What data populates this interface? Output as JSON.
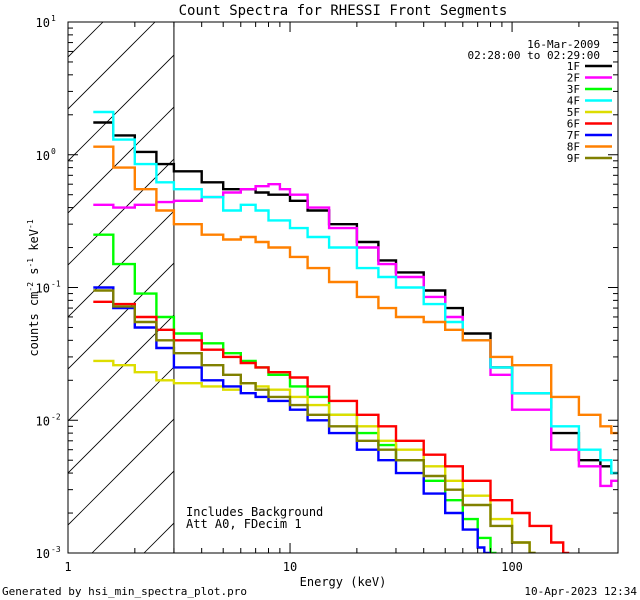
{
  "chart_data": {
    "type": "line",
    "title": "Count Spectra for RHESSI Front Segments",
    "xlabel": "Energy (keV)",
    "ylabel_parts": [
      "counts cm",
      "-2",
      " s",
      "-1",
      " keV",
      "-1"
    ],
    "xscale": "log",
    "yscale": "log",
    "xlim": [
      1,
      300
    ],
    "ylim": [
      0.001,
      10
    ],
    "x_ticks": [
      {
        "value": 1,
        "label": "1"
      },
      {
        "value": 10,
        "label": "10"
      },
      {
        "value": 100,
        "label": "100"
      }
    ],
    "y_ticks": [
      {
        "value": 0.001,
        "base": "10",
        "exp": "-3"
      },
      {
        "value": 0.01,
        "base": "10",
        "exp": "-2"
      },
      {
        "value": 0.1,
        "base": "10",
        "exp": "-1"
      },
      {
        "value": 1,
        "base": "10",
        "exp": "0"
      },
      {
        "value": 10,
        "base": "10",
        "exp": "1"
      }
    ],
    "date": "16-Mar-2009",
    "time_range": "02:28:00 to 02:29:00",
    "shaded_region": {
      "x_from": 1,
      "x_to": 3
    },
    "annotations": [
      "Includes Background",
      "Att A0, FDecim 1"
    ],
    "series": [
      {
        "name": "1F",
        "color": "#000000",
        "points": [
          [
            1.3,
            1.75
          ],
          [
            1.6,
            1.4
          ],
          [
            2,
            1.05
          ],
          [
            2.5,
            0.85
          ],
          [
            3,
            0.75
          ],
          [
            4,
            0.62
          ],
          [
            5,
            0.55
          ],
          [
            6,
            0.55
          ],
          [
            7,
            0.52
          ],
          [
            8,
            0.5
          ],
          [
            10,
            0.45
          ],
          [
            12,
            0.38
          ],
          [
            15,
            0.3
          ],
          [
            20,
            0.22
          ],
          [
            25,
            0.16
          ],
          [
            30,
            0.13
          ],
          [
            40,
            0.095
          ],
          [
            50,
            0.07
          ],
          [
            60,
            0.045
          ],
          [
            80,
            0.025
          ],
          [
            100,
            0.016
          ],
          [
            150,
            0.008
          ],
          [
            200,
            0.005
          ],
          [
            250,
            0.0045
          ],
          [
            280,
            0.004
          ]
        ]
      },
      {
        "name": "2F",
        "color": "#ff00ff",
        "points": [
          [
            1.3,
            0.42
          ],
          [
            1.6,
            0.4
          ],
          [
            2,
            0.42
          ],
          [
            2.5,
            0.44
          ],
          [
            3,
            0.45
          ],
          [
            4,
            0.48
          ],
          [
            5,
            0.52
          ],
          [
            6,
            0.55
          ],
          [
            7,
            0.58
          ],
          [
            8,
            0.6
          ],
          [
            9,
            0.55
          ],
          [
            10,
            0.5
          ],
          [
            12,
            0.4
          ],
          [
            15,
            0.28
          ],
          [
            20,
            0.2
          ],
          [
            25,
            0.15
          ],
          [
            30,
            0.12
          ],
          [
            40,
            0.085
          ],
          [
            50,
            0.06
          ],
          [
            60,
            0.04
          ],
          [
            80,
            0.022
          ],
          [
            100,
            0.012
          ],
          [
            150,
            0.006
          ],
          [
            200,
            0.0045
          ],
          [
            250,
            0.0032
          ],
          [
            280,
            0.0035
          ]
        ]
      },
      {
        "name": "3F",
        "color": "#00ff00",
        "points": [
          [
            1.3,
            0.25
          ],
          [
            1.6,
            0.15
          ],
          [
            2,
            0.09
          ],
          [
            2.5,
            0.06
          ],
          [
            3,
            0.045
          ],
          [
            4,
            0.038
          ],
          [
            5,
            0.032
          ],
          [
            6,
            0.028
          ],
          [
            7,
            0.025
          ],
          [
            8,
            0.022
          ],
          [
            10,
            0.018
          ],
          [
            12,
            0.015
          ],
          [
            15,
            0.011
          ],
          [
            20,
            0.008
          ],
          [
            25,
            0.0065
          ],
          [
            30,
            0.005
          ],
          [
            40,
            0.0035
          ],
          [
            50,
            0.0025
          ],
          [
            60,
            0.0018
          ],
          [
            70,
            0.0013
          ],
          [
            80,
            0.001
          ]
        ]
      },
      {
        "name": "4F",
        "color": "#00ffff",
        "points": [
          [
            1.3,
            2.1
          ],
          [
            1.6,
            1.3
          ],
          [
            2,
            0.85
          ],
          [
            2.5,
            0.62
          ],
          [
            3,
            0.55
          ],
          [
            4,
            0.48
          ],
          [
            5,
            0.38
          ],
          [
            6,
            0.42
          ],
          [
            7,
            0.38
          ],
          [
            8,
            0.32
          ],
          [
            10,
            0.28
          ],
          [
            12,
            0.24
          ],
          [
            15,
            0.2
          ],
          [
            20,
            0.14
          ],
          [
            25,
            0.12
          ],
          [
            30,
            0.1
          ],
          [
            40,
            0.075
          ],
          [
            50,
            0.055
          ],
          [
            60,
            0.04
          ],
          [
            80,
            0.025
          ],
          [
            100,
            0.016
          ],
          [
            150,
            0.009
          ],
          [
            200,
            0.006
          ],
          [
            250,
            0.005
          ],
          [
            280,
            0.004
          ]
        ]
      },
      {
        "name": "5F",
        "color": "#dddd00",
        "points": [
          [
            1.3,
            0.028
          ],
          [
            1.6,
            0.026
          ],
          [
            2,
            0.023
          ],
          [
            2.5,
            0.02
          ],
          [
            3,
            0.019
          ],
          [
            4,
            0.018
          ],
          [
            5,
            0.017
          ],
          [
            6,
            0.019
          ],
          [
            7,
            0.018
          ],
          [
            8,
            0.017
          ],
          [
            10,
            0.015
          ],
          [
            12,
            0.013
          ],
          [
            15,
            0.011
          ],
          [
            20,
            0.009
          ],
          [
            25,
            0.007
          ],
          [
            30,
            0.006
          ],
          [
            40,
            0.0045
          ],
          [
            50,
            0.0035
          ],
          [
            60,
            0.0027
          ],
          [
            80,
            0.0018
          ],
          [
            100,
            0.0012
          ],
          [
            120,
            0.001
          ]
        ]
      },
      {
        "name": "6F",
        "color": "#ff0000",
        "points": [
          [
            1.3,
            0.078
          ],
          [
            1.6,
            0.075
          ],
          [
            2,
            0.06
          ],
          [
            2.5,
            0.048
          ],
          [
            3,
            0.04
          ],
          [
            4,
            0.034
          ],
          [
            5,
            0.03
          ],
          [
            6,
            0.027
          ],
          [
            7,
            0.025
          ],
          [
            8,
            0.023
          ],
          [
            10,
            0.021
          ],
          [
            12,
            0.018
          ],
          [
            15,
            0.014
          ],
          [
            20,
            0.011
          ],
          [
            25,
            0.009
          ],
          [
            30,
            0.007
          ],
          [
            40,
            0.0055
          ],
          [
            50,
            0.0045
          ],
          [
            60,
            0.0035
          ],
          [
            80,
            0.0025
          ],
          [
            100,
            0.002
          ],
          [
            120,
            0.0016
          ],
          [
            150,
            0.0012
          ],
          [
            170,
            0.001
          ]
        ]
      },
      {
        "name": "7F",
        "color": "#0000ff",
        "points": [
          [
            1.3,
            0.1
          ],
          [
            1.6,
            0.07
          ],
          [
            2,
            0.05
          ],
          [
            2.5,
            0.035
          ],
          [
            3,
            0.025
          ],
          [
            4,
            0.02
          ],
          [
            5,
            0.018
          ],
          [
            6,
            0.016
          ],
          [
            7,
            0.015
          ],
          [
            8,
            0.014
          ],
          [
            10,
            0.012
          ],
          [
            12,
            0.01
          ],
          [
            15,
            0.008
          ],
          [
            20,
            0.006
          ],
          [
            25,
            0.005
          ],
          [
            30,
            0.004
          ],
          [
            40,
            0.0028
          ],
          [
            50,
            0.002
          ],
          [
            60,
            0.0015
          ],
          [
            70,
            0.0011
          ],
          [
            75,
            0.001
          ]
        ]
      },
      {
        "name": "8F",
        "color": "#ff8000",
        "points": [
          [
            1.3,
            1.15
          ],
          [
            1.6,
            0.8
          ],
          [
            2,
            0.55
          ],
          [
            2.5,
            0.38
          ],
          [
            3,
            0.3
          ],
          [
            4,
            0.25
          ],
          [
            5,
            0.23
          ],
          [
            6,
            0.24
          ],
          [
            7,
            0.22
          ],
          [
            8,
            0.2
          ],
          [
            10,
            0.17
          ],
          [
            12,
            0.14
          ],
          [
            15,
            0.11
          ],
          [
            20,
            0.085
          ],
          [
            25,
            0.07
          ],
          [
            30,
            0.06
          ],
          [
            40,
            0.055
          ],
          [
            50,
            0.048
          ],
          [
            60,
            0.04
          ],
          [
            80,
            0.03
          ],
          [
            100,
            0.026
          ],
          [
            150,
            0.015
          ],
          [
            200,
            0.011
          ],
          [
            250,
            0.009
          ],
          [
            280,
            0.008
          ]
        ]
      },
      {
        "name": "9F",
        "color": "#808000",
        "points": [
          [
            1.3,
            0.095
          ],
          [
            1.6,
            0.072
          ],
          [
            2,
            0.055
          ],
          [
            2.5,
            0.04
          ],
          [
            3,
            0.032
          ],
          [
            4,
            0.026
          ],
          [
            5,
            0.022
          ],
          [
            6,
            0.019
          ],
          [
            7,
            0.017
          ],
          [
            8,
            0.015
          ],
          [
            10,
            0.013
          ],
          [
            12,
            0.011
          ],
          [
            15,
            0.009
          ],
          [
            20,
            0.007
          ],
          [
            25,
            0.006
          ],
          [
            30,
            0.005
          ],
          [
            40,
            0.0038
          ],
          [
            50,
            0.003
          ],
          [
            60,
            0.0023
          ],
          [
            80,
            0.0016
          ],
          [
            100,
            0.0012
          ],
          [
            120,
            0.001
          ]
        ]
      }
    ]
  },
  "footer": {
    "generated_by": "Generated by hsi_min_spectra_plot.pro",
    "timestamp": "10-Apr-2023 12:34"
  }
}
